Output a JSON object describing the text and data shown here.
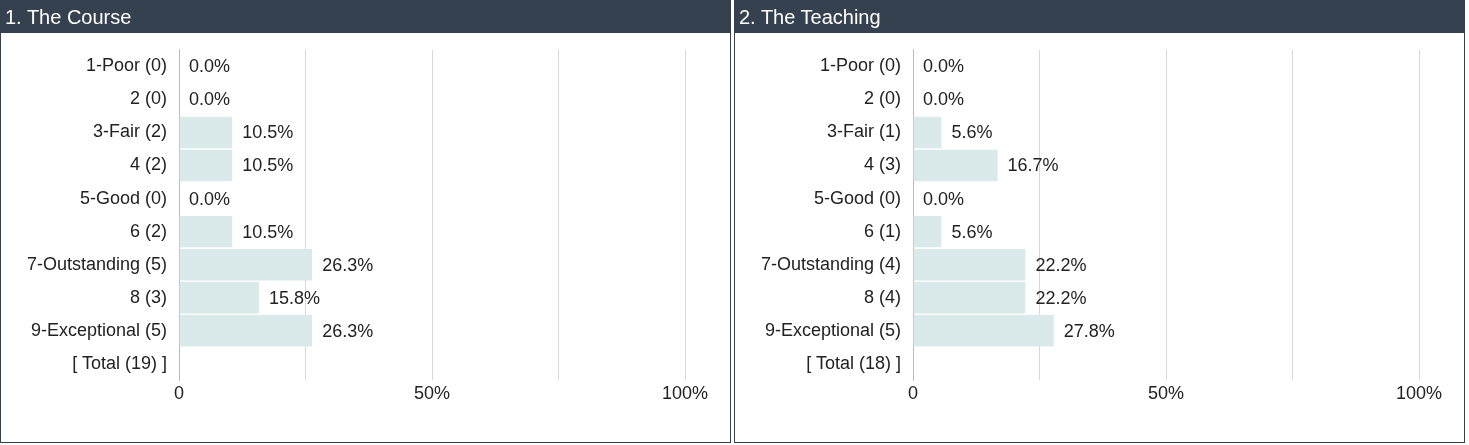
{
  "chart_data": [
    {
      "type": "bar",
      "orientation": "horizontal",
      "title": "1. The Course",
      "categories": [
        "1-Poor (0)",
        "2 (0)",
        "3-Fair (2)",
        "4 (2)",
        "5-Good (0)",
        "6 (2)",
        "7-Outstanding (5)",
        "8 (3)",
        "9-Exceptional (5)",
        "[ Total (19) ]"
      ],
      "values": [
        0,
        0,
        10.5,
        10.5,
        0,
        10.5,
        26.3,
        15.8,
        26.3,
        null
      ],
      "value_labels": [
        "0.0%",
        "0.0%",
        "10.5%",
        "10.5%",
        "0.0%",
        "10.5%",
        "26.3%",
        "15.8%",
        "26.3%",
        null
      ],
      "color": "#daeaeb",
      "xlim": [
        0,
        100
      ],
      "xticks": [
        0,
        {
          "value": 25,
          "label": null
        },
        {
          "value": 50,
          "label": "50%"
        },
        {
          "value": 75,
          "label": null
        },
        {
          "value": 100,
          "label": "100%"
        }
      ],
      "grid": "x",
      "legend": false
    },
    {
      "type": "bar",
      "orientation": "horizontal",
      "title": "2. The Teaching",
      "categories": [
        "1-Poor (0)",
        "2 (0)",
        "3-Fair (1)",
        "4 (3)",
        "5-Good (0)",
        "6 (1)",
        "7-Outstanding (4)",
        "8 (4)",
        "9-Exceptional (5)",
        "[ Total (18) ]"
      ],
      "values": [
        0,
        0,
        5.6,
        16.7,
        0,
        5.6,
        22.2,
        22.2,
        27.8,
        null
      ],
      "value_labels": [
        "0.0%",
        "0.0%",
        "5.6%",
        "16.7%",
        "0.0%",
        "5.6%",
        "22.2%",
        "22.2%",
        "27.8%",
        null
      ],
      "color": "#daeaeb",
      "xlim": [
        0,
        100
      ],
      "xticks": [
        0,
        {
          "value": 25,
          "label": null
        },
        {
          "value": 50,
          "label": "50%"
        },
        {
          "value": 75,
          "label": null
        },
        {
          "value": 100,
          "label": "100%"
        }
      ],
      "grid": "x",
      "legend": false
    }
  ]
}
